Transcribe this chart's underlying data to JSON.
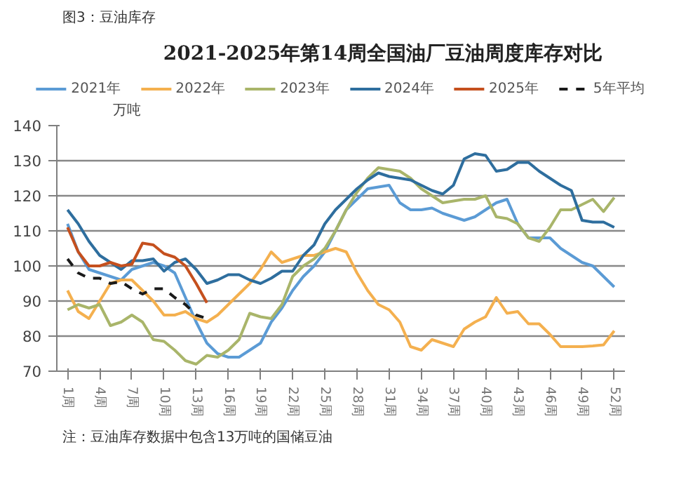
{
  "chart_data": {
    "type": "line",
    "title": "2021-2025年第14周全国油厂豆油周度库存对比",
    "ylabel": "万吨",
    "annotations": [
      "图3：豆油库存",
      "注：豆油库存数据中包含13万吨的国储豆油"
    ],
    "x": [
      1,
      2,
      3,
      4,
      5,
      6,
      7,
      8,
      9,
      10,
      11,
      12,
      13,
      14,
      15,
      16,
      17,
      18,
      19,
      20,
      21,
      22,
      23,
      24,
      25,
      26,
      27,
      28,
      29,
      30,
      31,
      32,
      33,
      34,
      35,
      36,
      37,
      38,
      39,
      40,
      41,
      42,
      43,
      44,
      45,
      46,
      47,
      48,
      49,
      50,
      51,
      52
    ],
    "xlim": [
      0,
      53
    ],
    "xticks": [
      {
        "value": 1,
        "label": "1周"
      },
      {
        "value": 4,
        "label": "4周"
      },
      {
        "value": 7,
        "label": "7周"
      },
      {
        "value": 10,
        "label": "10周"
      },
      {
        "value": 13,
        "label": "13周"
      },
      {
        "value": 16,
        "label": "16周"
      },
      {
        "value": 19,
        "label": "19周"
      },
      {
        "value": 22,
        "label": "22周"
      },
      {
        "value": 25,
        "label": "25周"
      },
      {
        "value": 28,
        "label": "28周"
      },
      {
        "value": 31,
        "label": "31周"
      },
      {
        "value": 34,
        "label": "34周"
      },
      {
        "value": 37,
        "label": "37周"
      },
      {
        "value": 40,
        "label": "40周"
      },
      {
        "value": 43,
        "label": "43周"
      },
      {
        "value": 46,
        "label": "46周"
      },
      {
        "value": 49,
        "label": "49周"
      },
      {
        "value": 52,
        "label": "52周"
      }
    ],
    "ylim": [
      70,
      140
    ],
    "yticks": [
      70,
      80,
      90,
      100,
      110,
      120,
      130,
      140
    ],
    "grid": "y",
    "legend": "top",
    "series": [
      {
        "name": "2021年",
        "color": "#5b9bd5",
        "values": [
          112,
          104,
          99,
          98,
          97,
          96,
          99,
          100,
          101,
          100,
          98,
          91,
          84,
          78,
          75,
          74,
          74,
          76,
          78,
          84,
          88,
          93,
          97,
          100,
          104,
          110,
          116,
          119,
          122,
          122.5,
          123,
          118,
          116,
          116,
          116.5,
          115,
          114,
          113,
          114,
          116,
          118,
          119,
          112,
          108,
          108,
          108,
          105,
          103,
          101,
          100,
          97,
          94
        ]
      },
      {
        "name": "2022年",
        "color": "#f4b04f",
        "values": [
          93,
          87,
          85,
          90,
          95,
          96,
          96,
          93,
          90,
          86,
          86,
          87,
          85,
          84,
          86,
          89,
          92,
          95,
          99,
          104,
          101,
          102,
          103,
          103,
          104,
          105,
          104,
          98,
          93,
          89,
          87.5,
          84,
          77,
          76,
          79,
          78,
          77,
          82,
          84,
          85.5,
          91,
          86.5,
          87,
          83.5,
          83.5,
          80.5,
          77,
          77,
          77,
          77.2,
          77.5,
          81.5
        ]
      },
      {
        "name": "2023年",
        "color": "#a9b56a",
        "values": [
          87.5,
          89,
          88,
          89,
          83,
          84,
          86,
          84,
          79,
          78.5,
          76,
          73,
          72,
          74.5,
          74,
          76,
          79,
          86.5,
          85.5,
          85,
          89,
          97,
          100,
          102,
          105,
          110,
          116,
          121,
          125,
          128,
          127.5,
          127,
          125,
          122,
          120,
          118,
          118.5,
          119,
          119,
          120,
          114,
          113.5,
          112,
          108,
          107,
          111,
          116,
          116,
          117.5,
          119,
          115.5,
          119.5
        ]
      },
      {
        "name": "2024年",
        "color": "#2e6e9e",
        "values": [
          116,
          112,
          107,
          103,
          101,
          99,
          101.5,
          101.5,
          102,
          98.5,
          101,
          102,
          99,
          95,
          96,
          97.5,
          97.5,
          96,
          95,
          96.5,
          98.5,
          98.5,
          103,
          106,
          112,
          116,
          119,
          122,
          124.5,
          126.5,
          125.5,
          125,
          124.5,
          123,
          121.5,
          120.5,
          123,
          130.5,
          132,
          131.5,
          127,
          127.5,
          129.5,
          129.5,
          127,
          125,
          123,
          121.5,
          113,
          112.5,
          112.5,
          111
        ]
      },
      {
        "name": "2025年",
        "color": "#c5501e",
        "x": [
          1,
          2,
          3,
          4,
          5,
          6,
          7,
          8,
          9,
          10,
          11,
          12,
          13,
          14
        ],
        "values": [
          111,
          104,
          100,
          100,
          101,
          100,
          100.5,
          106.5,
          106,
          103.5,
          102.5,
          100,
          95,
          89.5
        ]
      },
      {
        "name": "5年平均",
        "color": "#1a1a1a",
        "line_style": "dashed",
        "x": [
          1,
          2,
          3,
          4,
          5,
          6,
          7,
          8,
          9,
          10,
          11,
          12,
          13,
          14
        ],
        "values": [
          102,
          98,
          96.5,
          96.5,
          95,
          95.5,
          93.5,
          92,
          93.5,
          93.5,
          91,
          89,
          86,
          85
        ]
      }
    ]
  }
}
